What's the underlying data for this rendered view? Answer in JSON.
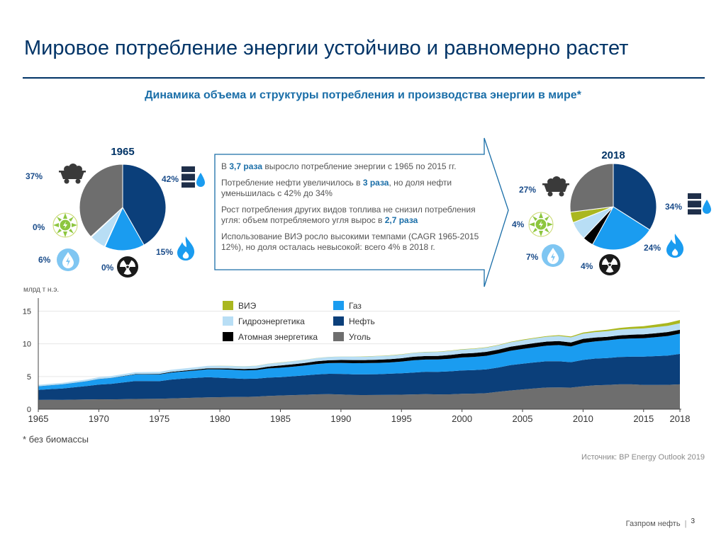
{
  "page": {
    "title": "Мировое потребление энергии устойчиво и равномерно растет",
    "subtitle": "Динамика объема и структуры потребления и производства энергии в мире*",
    "footnote": "* без биомассы",
    "source": "Источник: BP Energy Outlook 2019",
    "company": "Газпром нефть",
    "page_number": "3"
  },
  "callout": {
    "p1": [
      "В ",
      "3,7 раза",
      " выросло потребление энергии с 1965 по 2015 гг."
    ],
    "p2": [
      "Потребление нефти увеличилось в ",
      "3 раза",
      ", но доля нефти уменьшилась с 42% до 34%"
    ],
    "p3": [
      "Рост потребления других видов топлива не снизил потребления угля: объем потребляемого угля вырос в ",
      "2,7 раза",
      ""
    ],
    "p4": [
      "Использование ВИЭ росло высокими темпами (CAGR 1965-2015 12%), но доля осталась невысокой: всего 4% в 2018 г.",
      "",
      ""
    ]
  },
  "icons": {
    "coal": "coal-cart-icon",
    "oil": "oil-barrel-icon",
    "gas": "gas-flame-icon",
    "nuclear": "radiation-icon",
    "renewable": "renewable-sun-icon",
    "hydro": "hydro-drop-icon"
  },
  "colors": {
    "oil": "#0b3f7a",
    "gas": "#1a9cf0",
    "coal": "#6e6e6e",
    "nuclear": "#000000",
    "hydro": "#b8def5",
    "renewable": "#aab71f",
    "accent": "#1a6ea8",
    "dark_blue": "#003366"
  },
  "chart_data": [
    {
      "type": "pie",
      "title": "1965",
      "slices": [
        {
          "name": "Нефть",
          "value": 42,
          "label": "42%",
          "color": "#0b3f7a"
        },
        {
          "name": "Газ",
          "value": 15,
          "label": "15%",
          "color": "#1a9cf0"
        },
        {
          "name": "Атомная энергетика",
          "value": 0.2,
          "label": "0%",
          "color": "#000000"
        },
        {
          "name": "Гидроэнергетика",
          "value": 6,
          "label": "6%",
          "color": "#b8def5"
        },
        {
          "name": "ВИЭ",
          "value": 0.3,
          "label": "0%",
          "color": "#aab71f"
        },
        {
          "name": "Уголь",
          "value": 37,
          "label": "37%",
          "color": "#6e6e6e"
        }
      ]
    },
    {
      "type": "pie",
      "title": "2018",
      "slices": [
        {
          "name": "Нефть",
          "value": 34,
          "label": "34%",
          "color": "#0b3f7a"
        },
        {
          "name": "Газ",
          "value": 24,
          "label": "24%",
          "color": "#1a9cf0"
        },
        {
          "name": "Атомная энергетика",
          "value": 4,
          "label": "4%",
          "color": "#000000"
        },
        {
          "name": "Гидроэнергетика",
          "value": 7,
          "label": "7%",
          "color": "#b8def5"
        },
        {
          "name": "ВИЭ",
          "value": 4,
          "label": "4%",
          "color": "#aab71f"
        },
        {
          "name": "Уголь",
          "value": 27,
          "label": "27%",
          "color": "#6e6e6e"
        }
      ]
    },
    {
      "type": "area",
      "stacked": true,
      "ylabel": "млрд т н.э.",
      "ylim": [
        0,
        17
      ],
      "yticks": [
        0,
        5,
        10,
        15
      ],
      "xlim": [
        1965,
        2018
      ],
      "xticks": [
        1965,
        1970,
        1975,
        1980,
        1985,
        1990,
        1995,
        2000,
        2005,
        2010,
        2015,
        2018
      ],
      "x": [
        1965,
        1966,
        1967,
        1968,
        1969,
        1970,
        1971,
        1972,
        1973,
        1974,
        1975,
        1976,
        1977,
        1978,
        1979,
        1980,
        1981,
        1982,
        1983,
        1984,
        1985,
        1986,
        1987,
        1988,
        1989,
        1990,
        1991,
        1992,
        1993,
        1994,
        1995,
        1996,
        1997,
        1998,
        1999,
        2000,
        2001,
        2002,
        2003,
        2004,
        2005,
        2006,
        2007,
        2008,
        2009,
        2010,
        2011,
        2012,
        2013,
        2014,
        2015,
        2016,
        2017,
        2018
      ],
      "series": [
        {
          "name": "Уголь",
          "color": "#6e6e6e",
          "values": [
            1.42,
            1.43,
            1.42,
            1.46,
            1.48,
            1.52,
            1.51,
            1.53,
            1.57,
            1.58,
            1.6,
            1.66,
            1.71,
            1.75,
            1.81,
            1.84,
            1.86,
            1.88,
            1.93,
            2.03,
            2.1,
            2.15,
            2.21,
            2.27,
            2.31,
            2.25,
            2.18,
            2.17,
            2.18,
            2.19,
            2.22,
            2.26,
            2.3,
            2.26,
            2.27,
            2.35,
            2.38,
            2.45,
            2.66,
            2.86,
            3.02,
            3.18,
            3.31,
            3.34,
            3.3,
            3.51,
            3.65,
            3.7,
            3.8,
            3.8,
            3.7,
            3.7,
            3.72,
            3.8
          ]
        },
        {
          "name": "Нефть",
          "color": "#0b3f7a",
          "values": [
            1.53,
            1.64,
            1.75,
            1.9,
            2.06,
            2.25,
            2.37,
            2.56,
            2.74,
            2.72,
            2.69,
            2.88,
            2.97,
            3.05,
            3.1,
            2.97,
            2.86,
            2.76,
            2.74,
            2.8,
            2.8,
            2.89,
            2.95,
            3.05,
            3.1,
            3.15,
            3.15,
            3.17,
            3.17,
            3.23,
            3.27,
            3.35,
            3.43,
            3.45,
            3.52,
            3.57,
            3.6,
            3.63,
            3.72,
            3.87,
            3.93,
            3.98,
            4.02,
            3.99,
            3.89,
            4.03,
            4.09,
            4.12,
            4.18,
            4.23,
            4.34,
            4.42,
            4.49,
            4.66
          ]
        },
        {
          "name": "Газ",
          "color": "#1a9cf0",
          "values": [
            0.55,
            0.59,
            0.63,
            0.68,
            0.74,
            0.84,
            0.89,
            0.95,
            1.0,
            1.02,
            1.03,
            1.07,
            1.09,
            1.12,
            1.2,
            1.29,
            1.31,
            1.3,
            1.32,
            1.41,
            1.45,
            1.46,
            1.52,
            1.59,
            1.64,
            1.68,
            1.71,
            1.71,
            1.73,
            1.73,
            1.79,
            1.87,
            1.86,
            1.89,
            1.93,
            2.0,
            2.02,
            2.08,
            2.13,
            2.2,
            2.26,
            2.31,
            2.39,
            2.48,
            2.4,
            2.59,
            2.63,
            2.7,
            2.75,
            2.79,
            2.82,
            2.9,
            2.99,
            3.09
          ]
        },
        {
          "name": "Атомная энергетика",
          "color": "#000000",
          "values": [
            0.01,
            0.01,
            0.01,
            0.01,
            0.01,
            0.02,
            0.03,
            0.04,
            0.05,
            0.06,
            0.08,
            0.1,
            0.12,
            0.14,
            0.15,
            0.16,
            0.18,
            0.2,
            0.22,
            0.27,
            0.33,
            0.36,
            0.39,
            0.42,
            0.43,
            0.45,
            0.47,
            0.47,
            0.49,
            0.5,
            0.52,
            0.54,
            0.54,
            0.55,
            0.57,
            0.58,
            0.6,
            0.61,
            0.6,
            0.62,
            0.63,
            0.64,
            0.62,
            0.62,
            0.61,
            0.63,
            0.6,
            0.56,
            0.56,
            0.57,
            0.58,
            0.59,
            0.6,
            0.61
          ]
        },
        {
          "name": "Гидроэнергетика",
          "color": "#b8def5",
          "values": [
            0.21,
            0.22,
            0.23,
            0.24,
            0.25,
            0.26,
            0.27,
            0.28,
            0.29,
            0.31,
            0.32,
            0.33,
            0.34,
            0.35,
            0.37,
            0.39,
            0.4,
            0.41,
            0.43,
            0.45,
            0.46,
            0.47,
            0.48,
            0.49,
            0.5,
            0.51,
            0.52,
            0.53,
            0.55,
            0.56,
            0.57,
            0.59,
            0.6,
            0.61,
            0.62,
            0.63,
            0.64,
            0.65,
            0.66,
            0.68,
            0.71,
            0.73,
            0.75,
            0.78,
            0.79,
            0.8,
            0.82,
            0.85,
            0.88,
            0.9,
            0.92,
            0.94,
            0.96,
            0.98
          ]
        },
        {
          "name": "ВИЭ",
          "color": "#aab71f",
          "values": [
            0.0,
            0.0,
            0.0,
            0.0,
            0.0,
            0.0,
            0.0,
            0.0,
            0.0,
            0.0,
            0.0,
            0.0,
            0.0,
            0.0,
            0.0,
            0.01,
            0.01,
            0.01,
            0.01,
            0.01,
            0.02,
            0.02,
            0.02,
            0.02,
            0.02,
            0.02,
            0.03,
            0.03,
            0.03,
            0.03,
            0.03,
            0.03,
            0.04,
            0.04,
            0.04,
            0.05,
            0.05,
            0.05,
            0.06,
            0.07,
            0.08,
            0.09,
            0.1,
            0.12,
            0.13,
            0.16,
            0.19,
            0.22,
            0.26,
            0.3,
            0.34,
            0.39,
            0.44,
            0.5
          ]
        }
      ],
      "legend": [
        {
          "name": "ВИЭ",
          "color": "#aab71f"
        },
        {
          "name": "Гидроэнергетика",
          "color": "#b8def5"
        },
        {
          "name": "Атомная энергетика",
          "color": "#000000"
        },
        {
          "name": "Газ",
          "color": "#1a9cf0"
        },
        {
          "name": "Нефть",
          "color": "#0b3f7a"
        },
        {
          "name": "Уголь",
          "color": "#6e6e6e"
        }
      ],
      "legend_position": "top-left"
    }
  ]
}
